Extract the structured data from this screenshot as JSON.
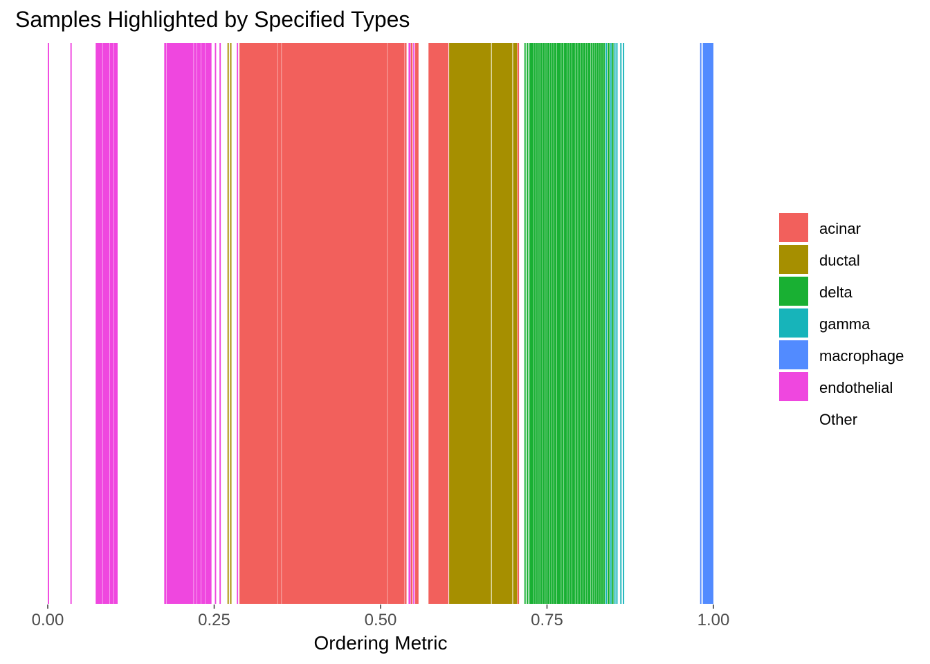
{
  "chart_data": {
    "type": "bar",
    "title": "Samples Highlighted by Specified Types",
    "xlabel": "Ordering Metric",
    "ylabel": "",
    "xlim": [
      0,
      1
    ],
    "xticks": [
      0,
      0.25,
      0.5,
      0.75,
      1
    ],
    "xtick_labels": [
      "0.00",
      "0.25",
      "0.50",
      "0.75",
      "1.00"
    ],
    "grid": false,
    "legend_position": "right",
    "legend": [
      {
        "name": "acinar",
        "color": "#F2605C"
      },
      {
        "name": "ductal",
        "color": "#A68F00"
      },
      {
        "name": "delta",
        "color": "#19B033"
      },
      {
        "name": "gamma",
        "color": "#17B4BA"
      },
      {
        "name": "macrophage",
        "color": "#528BFF"
      },
      {
        "name": "endothelial",
        "color": "#EF47DF"
      },
      {
        "name": "Other",
        "color": "#FFFFFF"
      }
    ],
    "segments": [
      {
        "type": "endothelial",
        "start": 0.0,
        "end": 0.002
      },
      {
        "type": "endothelial",
        "start": 0.034,
        "end": 0.036
      },
      {
        "type": "endothelial",
        "start": 0.072,
        "end": 0.082
      },
      {
        "type": "endothelial",
        "start": 0.0825,
        "end": 0.093
      },
      {
        "type": "endothelial",
        "start": 0.0935,
        "end": 0.099
      },
      {
        "type": "endothelial",
        "start": 0.0995,
        "end": 0.105
      },
      {
        "type": "endothelial",
        "start": 0.175,
        "end": 0.178
      },
      {
        "type": "endothelial",
        "start": 0.1785,
        "end": 0.219
      },
      {
        "type": "endothelial",
        "start": 0.2195,
        "end": 0.224
      },
      {
        "type": "endothelial",
        "start": 0.2245,
        "end": 0.23
      },
      {
        "type": "endothelial",
        "start": 0.2305,
        "end": 0.236
      },
      {
        "type": "endothelial",
        "start": 0.2365,
        "end": 0.246
      },
      {
        "type": "endothelial",
        "start": 0.251,
        "end": 0.253
      },
      {
        "type": "endothelial",
        "start": 0.258,
        "end": 0.26
      },
      {
        "type": "ductal",
        "start": 0.27,
        "end": 0.272
      },
      {
        "type": "ductal",
        "start": 0.274,
        "end": 0.276
      },
      {
        "type": "endothelial",
        "start": 0.284,
        "end": 0.286
      },
      {
        "type": "acinar",
        "start": 0.288,
        "end": 0.345
      },
      {
        "type": "acinar",
        "start": 0.3455,
        "end": 0.351
      },
      {
        "type": "acinar",
        "start": 0.3515,
        "end": 0.51
      },
      {
        "type": "acinar",
        "start": 0.5105,
        "end": 0.536
      },
      {
        "type": "acinar",
        "start": 0.5365,
        "end": 0.539
      },
      {
        "type": "endothelial",
        "start": 0.542,
        "end": 0.545
      },
      {
        "type": "acinar",
        "start": 0.5455,
        "end": 0.548
      },
      {
        "type": "endothelial",
        "start": 0.549,
        "end": 0.551
      },
      {
        "type": "acinar",
        "start": 0.552,
        "end": 0.557
      },
      {
        "type": "acinar",
        "start": 0.572,
        "end": 0.602
      },
      {
        "type": "ductal",
        "start": 0.603,
        "end": 0.666
      },
      {
        "type": "ductal",
        "start": 0.667,
        "end": 0.698
      },
      {
        "type": "ductal",
        "start": 0.699,
        "end": 0.705
      },
      {
        "type": "acinar",
        "start": 0.7055,
        "end": 0.708
      },
      {
        "type": "delta",
        "start": 0.716,
        "end": 0.718
      },
      {
        "type": "delta",
        "start": 0.7195,
        "end": 0.722
      },
      {
        "type": "delta",
        "start": 0.7235,
        "end": 0.73
      },
      {
        "type": "delta",
        "start": 0.7305,
        "end": 0.733
      },
      {
        "type": "delta",
        "start": 0.7335,
        "end": 0.736
      },
      {
        "type": "delta",
        "start": 0.7365,
        "end": 0.739
      },
      {
        "type": "delta",
        "start": 0.7395,
        "end": 0.743
      },
      {
        "type": "delta",
        "start": 0.7435,
        "end": 0.747
      },
      {
        "type": "delta",
        "start": 0.7475,
        "end": 0.75
      },
      {
        "type": "delta",
        "start": 0.7505,
        "end": 0.754
      },
      {
        "type": "delta",
        "start": 0.7545,
        "end": 0.757
      },
      {
        "type": "delta",
        "start": 0.7575,
        "end": 0.76
      },
      {
        "type": "delta",
        "start": 0.7605,
        "end": 0.764
      },
      {
        "type": "delta",
        "start": 0.7645,
        "end": 0.771
      },
      {
        "type": "delta",
        "start": 0.7715,
        "end": 0.775
      },
      {
        "type": "delta",
        "start": 0.7755,
        "end": 0.78
      },
      {
        "type": "delta",
        "start": 0.7805,
        "end": 0.783
      },
      {
        "type": "delta",
        "start": 0.7835,
        "end": 0.787
      },
      {
        "type": "delta",
        "start": 0.7875,
        "end": 0.792
      },
      {
        "type": "delta",
        "start": 0.7925,
        "end": 0.796
      },
      {
        "type": "delta",
        "start": 0.7965,
        "end": 0.8
      },
      {
        "type": "delta",
        "start": 0.8005,
        "end": 0.804
      },
      {
        "type": "delta",
        "start": 0.8045,
        "end": 0.808
      },
      {
        "type": "delta",
        "start": 0.8085,
        "end": 0.811
      },
      {
        "type": "delta",
        "start": 0.8115,
        "end": 0.815
      },
      {
        "type": "delta",
        "start": 0.8155,
        "end": 0.818
      },
      {
        "type": "delta",
        "start": 0.8185,
        "end": 0.821
      },
      {
        "type": "delta",
        "start": 0.8215,
        "end": 0.824
      },
      {
        "type": "delta",
        "start": 0.8245,
        "end": 0.828
      },
      {
        "type": "delta",
        "start": 0.8285,
        "end": 0.831
      },
      {
        "type": "delta",
        "start": 0.8315,
        "end": 0.834
      },
      {
        "type": "delta",
        "start": 0.8345,
        "end": 0.837
      },
      {
        "type": "gamma",
        "start": 0.838,
        "end": 0.84
      },
      {
        "type": "delta",
        "start": 0.841,
        "end": 0.844
      },
      {
        "type": "gamma",
        "start": 0.845,
        "end": 0.847
      },
      {
        "type": "delta",
        "start": 0.8475,
        "end": 0.85
      },
      {
        "type": "gamma",
        "start": 0.851,
        "end": 0.853
      },
      {
        "type": "gamma",
        "start": 0.854,
        "end": 0.856
      },
      {
        "type": "gamma",
        "start": 0.86,
        "end": 0.862
      },
      {
        "type": "gamma",
        "start": 0.864,
        "end": 0.866
      },
      {
        "type": "macrophage",
        "start": 0.98,
        "end": 0.982
      },
      {
        "type": "macrophage",
        "start": 0.984,
        "end": 1.0
      }
    ]
  }
}
